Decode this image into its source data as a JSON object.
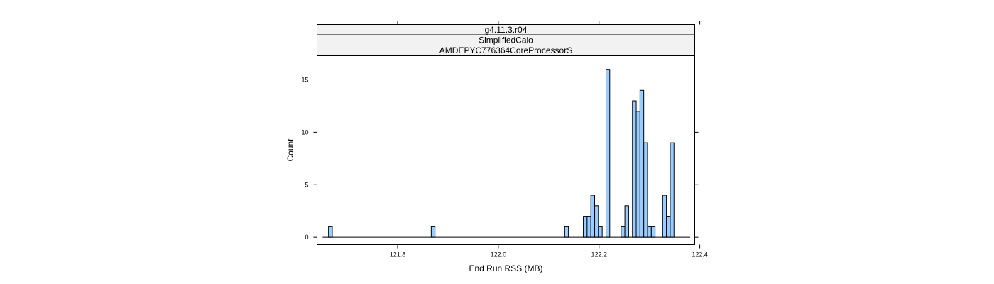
{
  "chart_data": {
    "type": "bar",
    "strips": [
      "g4.11.3.r04",
      "SimplifiedCalo",
      "AMDEPYC776364CoreProcessorS"
    ],
    "xlabel": "End Run RSS (MB)",
    "ylabel": "Count",
    "xlim": [
      121.64,
      122.39
    ],
    "ylim": [
      -0.7,
      17.3
    ],
    "x_ticks": [
      121.8,
      122.0,
      122.2,
      122.4
    ],
    "x_tick_labels": [
      "121.8",
      "122.0",
      "122.2",
      "122.4"
    ],
    "y_ticks": [
      0,
      5,
      10,
      15
    ],
    "y_tick_labels": [
      "0",
      "5",
      "10",
      "15"
    ],
    "bin_width": 0.0075,
    "baseline_range": [
      121.651,
      122.381
    ],
    "bins": [
      {
        "x": 121.6665,
        "count": 1
      },
      {
        "x": 121.8705,
        "count": 1
      },
      {
        "x": 122.1355,
        "count": 1
      },
      {
        "x": 122.1725,
        "count": 2
      },
      {
        "x": 122.18,
        "count": 2
      },
      {
        "x": 122.1875,
        "count": 4
      },
      {
        "x": 122.195,
        "count": 3
      },
      {
        "x": 122.2025,
        "count": 1
      },
      {
        "x": 122.2175,
        "count": 16
      },
      {
        "x": 122.2475,
        "count": 1
      },
      {
        "x": 122.255,
        "count": 3
      },
      {
        "x": 122.27,
        "count": 13
      },
      {
        "x": 122.2775,
        "count": 12
      },
      {
        "x": 122.285,
        "count": 14
      },
      {
        "x": 122.2925,
        "count": 9
      },
      {
        "x": 122.3,
        "count": 1
      },
      {
        "x": 122.3075,
        "count": 1
      },
      {
        "x": 122.33,
        "count": 4
      },
      {
        "x": 122.3375,
        "count": 2
      },
      {
        "x": 122.345,
        "count": 9
      }
    ],
    "bar_color": "#99CCFF",
    "bar_edge_color": "#000000",
    "strip_color": "#F2F2F2",
    "grid": false
  }
}
